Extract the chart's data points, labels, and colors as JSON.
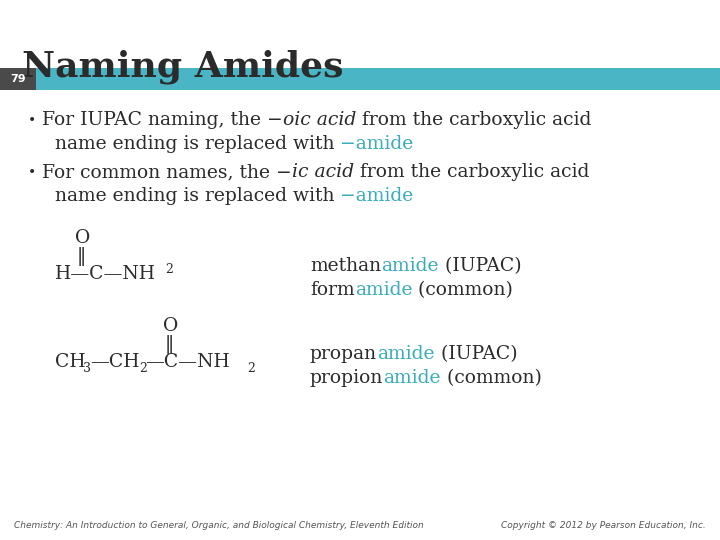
{
  "title": "Naming Amides",
  "title_color": "#2b2b2b",
  "title_fontsize": 26,
  "slide_number": "79",
  "slide_num_color": "#ffffff",
  "bar_color": "#4ab5c4",
  "background_color": "#ffffff",
  "dark": "#2b2b2b",
  "teal": "#3aacbc",
  "footer_left": "Chemistry: An Introduction to General, Organic, and Biological Chemistry, Eleventh Edition",
  "footer_right": "Copyright © 2012 by Pearson Education, Inc.",
  "footer_color": "#555555"
}
